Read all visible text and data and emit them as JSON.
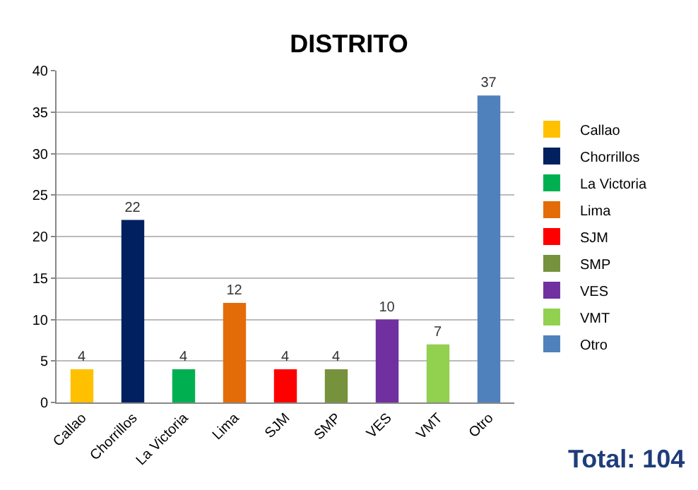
{
  "chart_data": {
    "type": "bar",
    "title": "DISTRITO",
    "categories": [
      "Callao",
      "Chorrillos",
      "La Victoria",
      "Lima",
      "SJM",
      "SMP",
      "VES",
      "VMT",
      "Otro"
    ],
    "series": [
      {
        "name": "Callao",
        "color": "#ffc000",
        "values": [
          4,
          null,
          null,
          null,
          null,
          null,
          null,
          null,
          null
        ]
      },
      {
        "name": "Chorrillos",
        "color": "#002060",
        "values": [
          null,
          22,
          null,
          null,
          null,
          null,
          null,
          null,
          null
        ]
      },
      {
        "name": "La Victoria",
        "color": "#00b050",
        "values": [
          null,
          null,
          4,
          null,
          null,
          null,
          null,
          null,
          null
        ]
      },
      {
        "name": "Lima",
        "color": "#e36c09",
        "values": [
          null,
          null,
          null,
          12,
          null,
          null,
          null,
          null,
          null
        ]
      },
      {
        "name": "SJM",
        "color": "#ff0000",
        "values": [
          null,
          null,
          null,
          null,
          4,
          null,
          null,
          null,
          null
        ]
      },
      {
        "name": "SMP",
        "color": "#76923c",
        "values": [
          null,
          null,
          null,
          null,
          null,
          4,
          null,
          null,
          null
        ]
      },
      {
        "name": "VES",
        "color": "#7030a0",
        "values": [
          null,
          null,
          null,
          null,
          null,
          null,
          10,
          null,
          null
        ]
      },
      {
        "name": "VMT",
        "color": "#92d050",
        "values": [
          null,
          null,
          null,
          null,
          null,
          null,
          null,
          7,
          null
        ]
      },
      {
        "name": "Otro",
        "color": "#4f81bd",
        "values": [
          null,
          null,
          null,
          null,
          null,
          null,
          null,
          null,
          37
        ]
      }
    ],
    "ylim": [
      0,
      40
    ],
    "yticks": [
      0,
      5,
      10,
      15,
      20,
      25,
      30,
      35,
      40
    ],
    "grid": "y",
    "legend": "right",
    "data_labels": true,
    "annotations": [
      "Total: 104"
    ]
  }
}
